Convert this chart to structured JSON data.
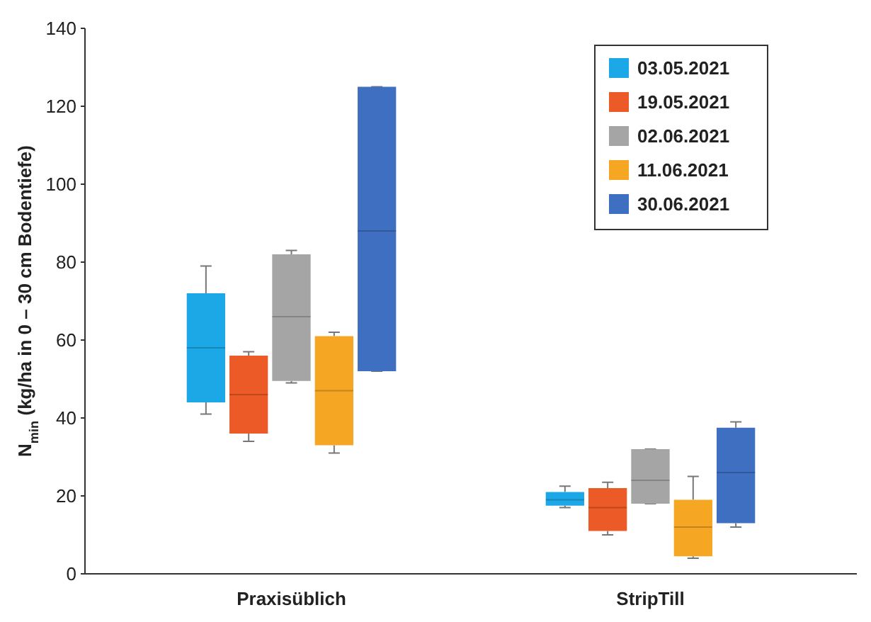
{
  "chart_data": {
    "type": "box",
    "ylabel": "N$_{min}$ (kg/ha in 0 – 30 cm Bodentiefe)",
    "categories": [
      "Praxisüblich",
      "StripTill"
    ],
    "ylim": [
      0,
      140
    ],
    "yticks": [
      0,
      20,
      40,
      60,
      80,
      100,
      120,
      140
    ],
    "legend": "top right",
    "series": [
      {
        "name": "03.05.2021",
        "color": "#1ca7e6",
        "boxes": [
          {
            "low": 41,
            "q1": 44,
            "median": 58,
            "q3": 72,
            "high": 79
          },
          {
            "low": 17,
            "q1": 17.5,
            "median": 19,
            "q3": 21,
            "high": 22.5
          }
        ]
      },
      {
        "name": "19.05.2021",
        "color": "#ec5a28",
        "boxes": [
          {
            "low": 34,
            "q1": 36,
            "median": 46,
            "q3": 56,
            "high": 57
          },
          {
            "low": 10,
            "q1": 11,
            "median": 17,
            "q3": 22,
            "high": 23.5
          }
        ]
      },
      {
        "name": "02.06.2021",
        "color": "#a5a5a5",
        "boxes": [
          {
            "low": 49,
            "q1": 49.5,
            "median": 66,
            "q3": 82,
            "high": 83
          },
          {
            "low": 18,
            "q1": 18,
            "median": 24,
            "q3": 32,
            "high": 32
          }
        ]
      },
      {
        "name": "11.06.2021",
        "color": "#f5a623",
        "boxes": [
          {
            "low": 31,
            "q1": 33,
            "median": 47,
            "q3": 61,
            "high": 62
          },
          {
            "low": 4,
            "q1": 4.5,
            "median": 12,
            "q3": 19,
            "high": 25
          }
        ]
      },
      {
        "name": "30.06.2021",
        "color": "#3f6fc0",
        "boxes": [
          {
            "low": 52,
            "q1": 52,
            "median": 88,
            "q3": 125,
            "high": 125
          },
          {
            "low": 12,
            "q1": 13,
            "median": 26,
            "q3": 37.5,
            "high": 39
          }
        ]
      }
    ]
  }
}
